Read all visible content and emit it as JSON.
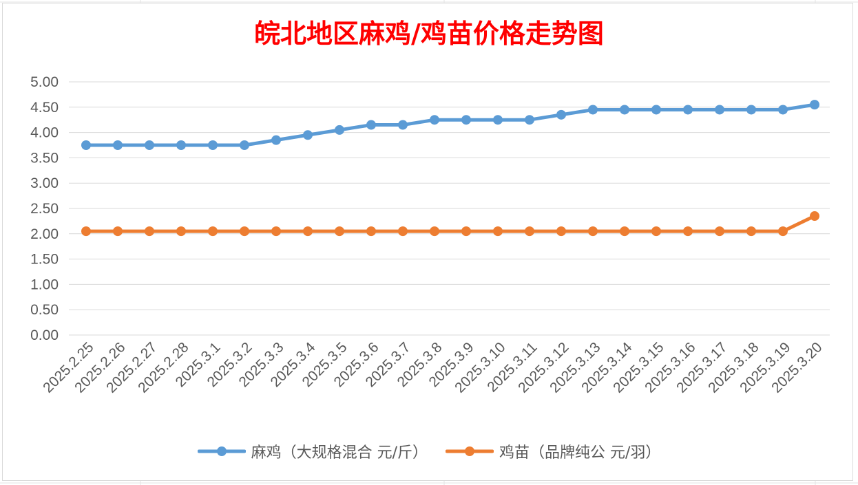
{
  "chart_data": {
    "type": "line",
    "title": "皖北地区麻鸡/鸡苗价格走势图",
    "xlabel": "",
    "ylabel": "",
    "ylim": [
      0,
      5
    ],
    "ytick_step": 0.5,
    "yticks": [
      "0.00",
      "0.50",
      "1.00",
      "1.50",
      "2.00",
      "2.50",
      "3.00",
      "3.50",
      "4.00",
      "4.50",
      "5.00"
    ],
    "grid": true,
    "legend_position": "bottom",
    "categories": [
      "2025.2.25",
      "2025.2.26",
      "2025.2.27",
      "2025.2.28",
      "2025.3.1",
      "2025.3.2",
      "2025.3.3",
      "2025.3.4",
      "2025.3.5",
      "2025.3.6",
      "2025.3.7",
      "2025.3.8",
      "2025.3.9",
      "2025.3.10",
      "2025.3.11",
      "2025.3.12",
      "2025.3.13",
      "2025.3.14",
      "2025.3.15",
      "2025.3.16",
      "2025.3.17",
      "2025.3.18",
      "2025.3.19",
      "2025.3.20"
    ],
    "series": [
      {
        "name": "麻鸡（大规格混合 元/斤）",
        "color": "#5b9bd5",
        "values": [
          3.75,
          3.75,
          3.75,
          3.75,
          3.75,
          3.75,
          3.85,
          3.95,
          4.05,
          4.15,
          4.15,
          4.25,
          4.25,
          4.25,
          4.25,
          4.35,
          4.45,
          4.45,
          4.45,
          4.45,
          4.45,
          4.45,
          4.45,
          4.55
        ]
      },
      {
        "name": "鸡苗（品牌纯公 元/羽）",
        "color": "#ed7d31",
        "values": [
          2.05,
          2.05,
          2.05,
          2.05,
          2.05,
          2.05,
          2.05,
          2.05,
          2.05,
          2.05,
          2.05,
          2.05,
          2.05,
          2.05,
          2.05,
          2.05,
          2.05,
          2.05,
          2.05,
          2.05,
          2.05,
          2.05,
          2.05,
          2.35
        ]
      }
    ]
  }
}
